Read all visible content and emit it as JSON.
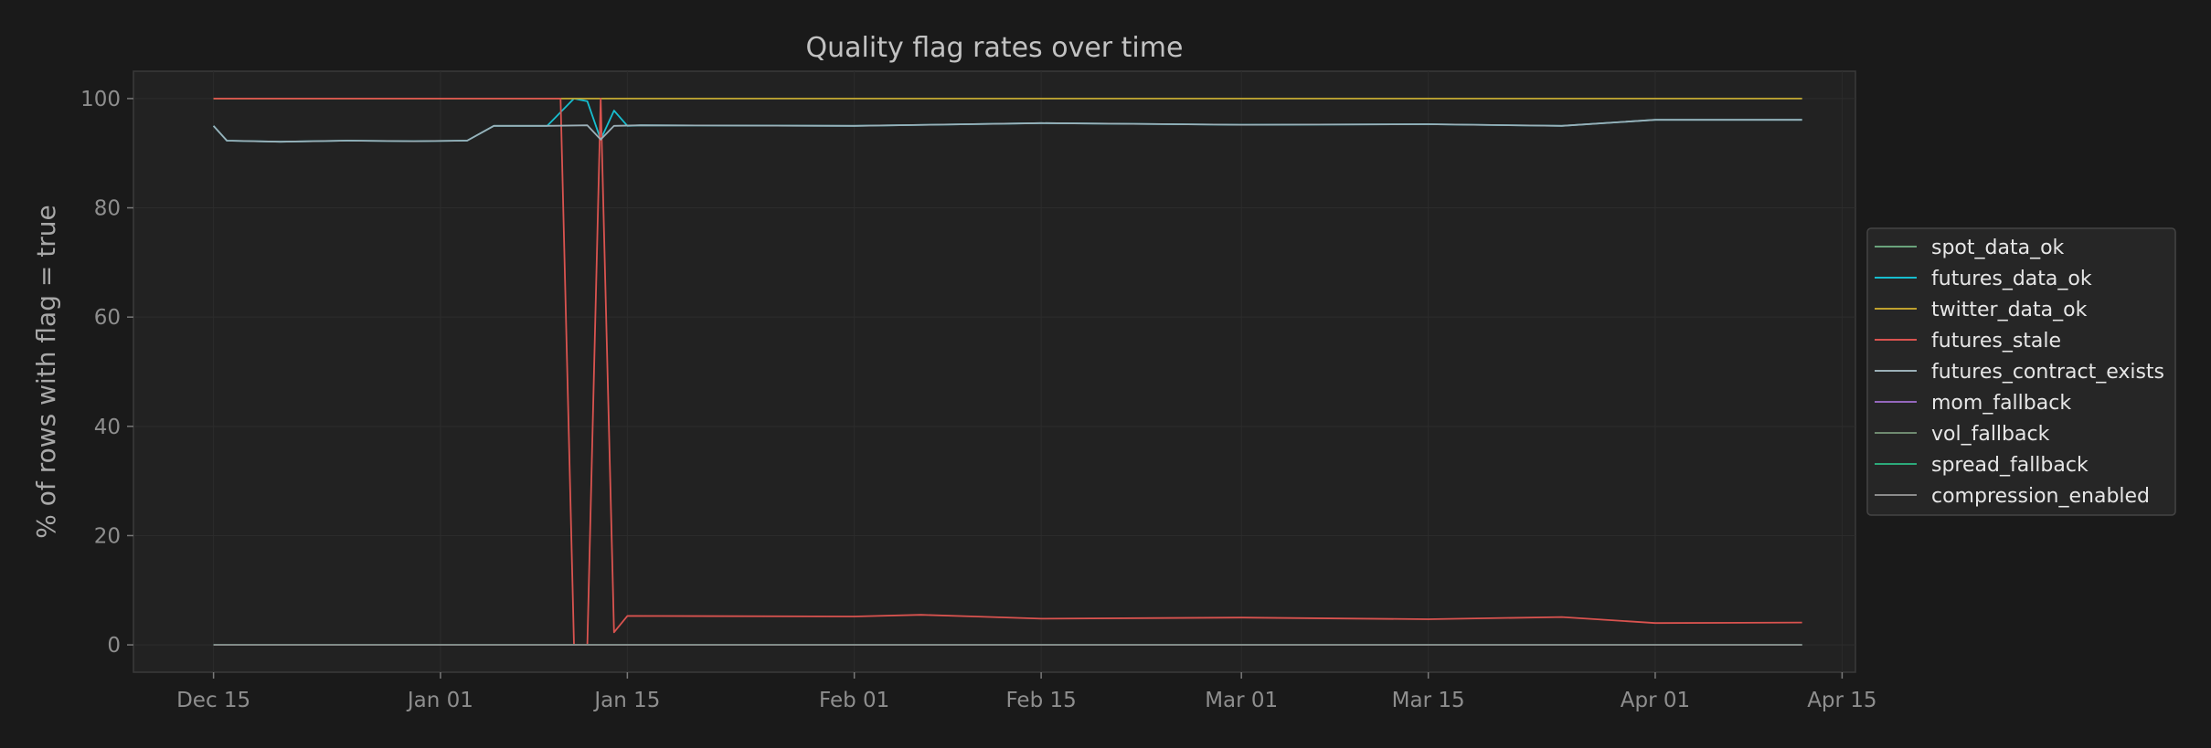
{
  "chart_data": {
    "type": "line",
    "title": "Quality flag rates over time",
    "xlabel": "",
    "ylabel": "% of rows with flag = true",
    "x_start": "2023-12-15",
    "x_end": "2024-04-12",
    "xlim": [
      "2023-12-09",
      "2024-04-16"
    ],
    "ylim": [
      -5,
      105
    ],
    "y_ticks": [
      0,
      20,
      40,
      60,
      80,
      100
    ],
    "x_ticks": [
      {
        "date": "2023-12-15",
        "label": "Dec 15"
      },
      {
        "date": "2024-01-01",
        "label": "Jan 01"
      },
      {
        "date": "2024-01-15",
        "label": "Jan 15"
      },
      {
        "date": "2024-02-01",
        "label": "Feb 01"
      },
      {
        "date": "2024-02-15",
        "label": "Feb 15"
      },
      {
        "date": "2024-03-01",
        "label": "Mar 01"
      },
      {
        "date": "2024-03-15",
        "label": "Mar 15"
      },
      {
        "date": "2024-04-01",
        "label": "Apr 01"
      },
      {
        "date": "2024-04-15",
        "label": "Apr 15"
      }
    ],
    "grid": true,
    "legend_position": "right",
    "series": [
      {
        "name": "spot_data_ok",
        "color": "#6aa37c",
        "points": [
          [
            "2023-12-15",
            100
          ],
          [
            "2024-04-12",
            100
          ]
        ]
      },
      {
        "name": "futures_data_ok",
        "color": "#17becf",
        "points": [
          [
            "2023-12-15",
            95.0
          ],
          [
            "2023-12-16",
            92.3
          ],
          [
            "2023-12-20",
            92.1
          ],
          [
            "2023-12-25",
            92.3
          ],
          [
            "2023-12-30",
            92.2
          ],
          [
            "2024-01-03",
            92.3
          ],
          [
            "2024-01-05",
            95.0
          ],
          [
            "2024-01-09",
            95.0
          ],
          [
            "2024-01-10",
            97.5
          ],
          [
            "2024-01-11",
            100
          ],
          [
            "2024-01-12",
            99.5
          ],
          [
            "2024-01-13",
            92.5
          ],
          [
            "2024-01-14",
            97.8
          ],
          [
            "2024-01-15",
            95.0
          ],
          [
            "2024-01-16",
            95.1
          ],
          [
            "2024-02-01",
            95.0
          ],
          [
            "2024-02-15",
            95.5
          ],
          [
            "2024-03-01",
            95.2
          ],
          [
            "2024-03-15",
            95.3
          ],
          [
            "2024-03-25",
            95.0
          ],
          [
            "2024-04-01",
            96.1
          ],
          [
            "2024-04-12",
            96.1
          ]
        ]
      },
      {
        "name": "twitter_data_ok",
        "color": "#bfa12e",
        "points": [
          [
            "2023-12-15",
            100
          ],
          [
            "2024-04-12",
            100
          ]
        ]
      },
      {
        "name": "futures_stale",
        "color": "#d9534f",
        "points": [
          [
            "2023-12-15",
            100
          ],
          [
            "2024-01-10",
            100
          ],
          [
            "2024-01-11",
            0
          ],
          [
            "2024-01-12",
            0
          ],
          [
            "2024-01-13",
            100
          ],
          [
            "2024-01-14",
            2.3
          ],
          [
            "2024-01-15",
            5.3
          ],
          [
            "2024-02-01",
            5.2
          ],
          [
            "2024-02-06",
            5.5
          ],
          [
            "2024-02-10",
            5.2
          ],
          [
            "2024-02-15",
            4.8
          ],
          [
            "2024-03-01",
            5.0
          ],
          [
            "2024-03-15",
            4.7
          ],
          [
            "2024-03-25",
            5.1
          ],
          [
            "2024-04-01",
            4.0
          ],
          [
            "2024-04-12",
            4.1
          ]
        ]
      },
      {
        "name": "futures_contract_exists",
        "color": "#9cb0b8",
        "points": [
          [
            "2023-12-15",
            95.0
          ],
          [
            "2023-12-16",
            92.3
          ],
          [
            "2023-12-20",
            92.1
          ],
          [
            "2023-12-25",
            92.3
          ],
          [
            "2023-12-30",
            92.2
          ],
          [
            "2024-01-03",
            92.3
          ],
          [
            "2024-01-05",
            95.0
          ],
          [
            "2024-01-09",
            95.0
          ],
          [
            "2024-01-12",
            95.1
          ],
          [
            "2024-01-13",
            92.5
          ],
          [
            "2024-01-14",
            95.0
          ],
          [
            "2024-01-16",
            95.1
          ],
          [
            "2024-02-01",
            95.0
          ],
          [
            "2024-02-15",
            95.5
          ],
          [
            "2024-03-01",
            95.2
          ],
          [
            "2024-03-15",
            95.3
          ],
          [
            "2024-03-25",
            95.0
          ],
          [
            "2024-04-01",
            96.1
          ],
          [
            "2024-04-12",
            96.1
          ]
        ]
      },
      {
        "name": "mom_fallback",
        "color": "#9467bd",
        "points": [
          [
            "2023-12-15",
            0
          ],
          [
            "2024-04-12",
            0
          ]
        ]
      },
      {
        "name": "vol_fallback",
        "color": "#6f8a70",
        "points": [
          [
            "2023-12-15",
            0
          ],
          [
            "2024-04-12",
            0
          ]
        ]
      },
      {
        "name": "spread_fallback",
        "color": "#2ca97a",
        "points": [
          [
            "2023-12-15",
            0
          ],
          [
            "2024-04-12",
            0
          ]
        ]
      },
      {
        "name": "compression_enabled",
        "color": "#8c8c8c",
        "points": [
          [
            "2023-12-15",
            0
          ],
          [
            "2024-04-12",
            0
          ]
        ]
      }
    ]
  }
}
